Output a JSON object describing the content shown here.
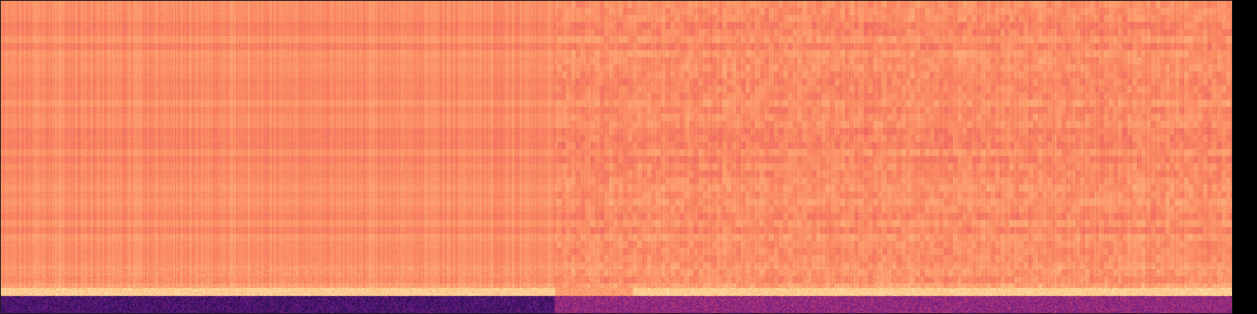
{
  "image": {
    "kind": "spectrogram",
    "colormap": "magma",
    "colors": {
      "background": "#000000",
      "dominant": "#f4755f",
      "dark_low": "#3b0f70",
      "bright_band": "#fcfdbf"
    },
    "segments": [
      {
        "start_fraction": 0.0,
        "end_fraction": 0.45,
        "texture": "fine-vertical-noise"
      },
      {
        "start_fraction": 0.45,
        "end_fraction": 0.6,
        "texture": "coarse-blocks"
      },
      {
        "start_fraction": 0.6,
        "end_fraction": 1.0,
        "texture": "coarse-blocks-with-streaks"
      }
    ],
    "low_band_level": 0.95,
    "bottom_band_level": 0.2
  }
}
